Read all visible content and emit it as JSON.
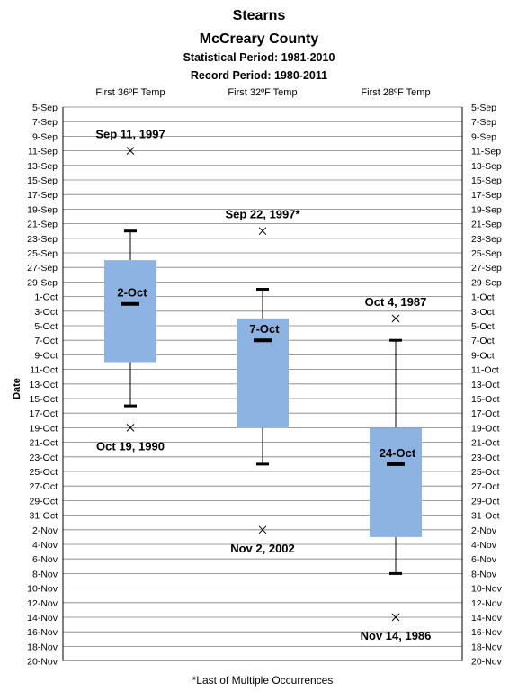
{
  "chart_data": {
    "type": "box",
    "title": "Stearns",
    "subtitle": "McCreary County",
    "statistical_period": "Statistical Period: 1981-2010",
    "record_period": "Record Period: 1980-2011",
    "ylabel": "Date",
    "footnote": "*Last of Multiple Occurrences",
    "grid": true,
    "y_axis": {
      "reversed": true,
      "ticks": [
        "5-Sep",
        "7-Sep",
        "9-Sep",
        "11-Sep",
        "13-Sep",
        "15-Sep",
        "17-Sep",
        "19-Sep",
        "21-Sep",
        "23-Sep",
        "25-Sep",
        "27-Sep",
        "29-Sep",
        "1-Oct",
        "3-Oct",
        "5-Oct",
        "7-Oct",
        "9-Oct",
        "11-Oct",
        "13-Oct",
        "15-Oct",
        "17-Oct",
        "19-Oct",
        "21-Oct",
        "23-Oct",
        "25-Oct",
        "27-Oct",
        "29-Oct",
        "31-Oct",
        "2-Nov",
        "4-Nov",
        "6-Nov",
        "8-Nov",
        "10-Nov",
        "12-Nov",
        "14-Nov",
        "16-Nov",
        "18-Nov",
        "20-Nov"
      ]
    },
    "categories": [
      "First 36ºF Temp",
      "First 32ºF Temp",
      "First 28ºF Temp"
    ],
    "series": [
      {
        "category": "First 36ºF Temp",
        "whisker_low": "22-Sep",
        "q1": "26-Sep",
        "median": "2-Oct",
        "median_label": "2-Oct",
        "q3": "10-Oct",
        "whisker_high": "16-Oct",
        "record_earliest": "11-Sep",
        "record_earliest_label": "Sep 11, 1997",
        "record_latest": "19-Oct",
        "record_latest_label": "Oct 19, 1990"
      },
      {
        "category": "First 32ºF Temp",
        "whisker_low": "30-Sep",
        "q1": "4-Oct",
        "median": "7-Oct",
        "median_label": "7-Oct",
        "q3": "19-Oct",
        "whisker_high": "24-Oct",
        "record_earliest": "22-Sep",
        "record_earliest_label": "Sep 22, 1997*",
        "record_latest": "2-Nov",
        "record_latest_label": "Nov 2, 2002"
      },
      {
        "category": "First 28ºF Temp",
        "whisker_low": "7-Oct",
        "q1": "19-Oct",
        "median": "24-Oct",
        "median_label": "24-Oct",
        "q3": "3-Nov",
        "whisker_high": "8-Nov",
        "record_earliest": "4-Oct",
        "record_earliest_label": "Oct 4, 1987",
        "record_latest": "14-Nov",
        "record_latest_label": "Nov 14, 1986"
      }
    ],
    "colors": {
      "box_fill": "#8db3e2",
      "grid": "#7f7f7f",
      "axis": "#000000"
    }
  }
}
